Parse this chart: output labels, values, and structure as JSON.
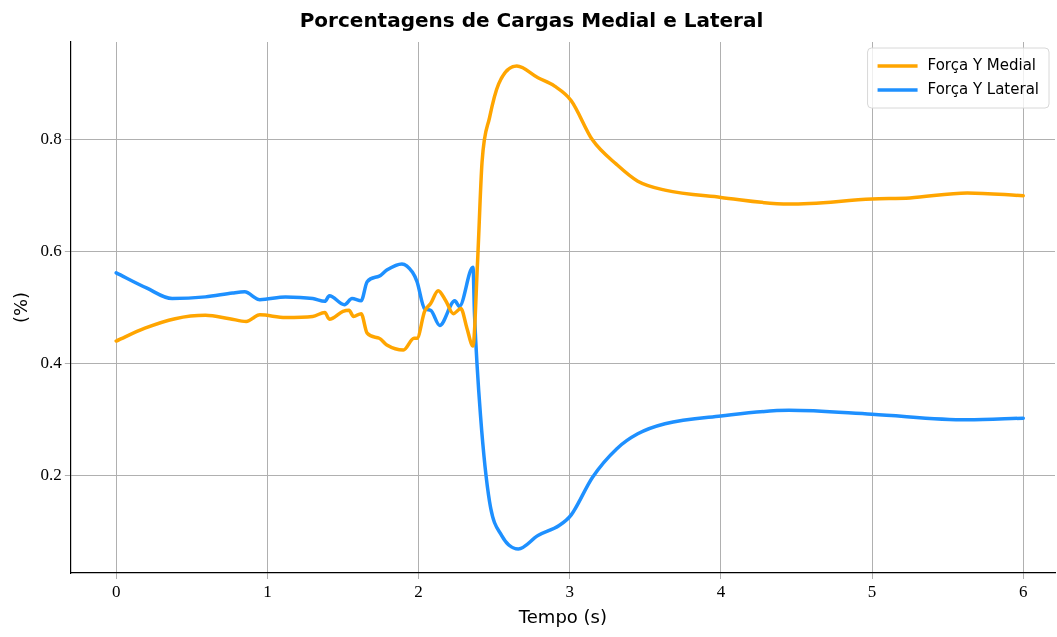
{
  "chart_data": {
    "type": "line",
    "title": "Porcentagens de Cargas Medial e Lateral",
    "xlabel": "Tempo (s)",
    "ylabel": "(%)",
    "xlim": [
      -0.3,
      6.21
    ],
    "ylim": [
      0.025,
      0.975
    ],
    "xticks": [
      0,
      1,
      2,
      3,
      4,
      5,
      6
    ],
    "yticks": [
      0.2,
      0.4,
      0.6,
      0.8
    ],
    "grid": true,
    "legend": "top right",
    "marker": "none",
    "line_style": "solid",
    "series": [
      {
        "name": "Força Y Medial",
        "color": "#ffa500",
        "x": [
          0,
          0.19,
          0.39,
          0.59,
          0.75,
          0.86,
          0.95,
          1.12,
          1.3,
          1.38,
          1.41,
          1.5,
          1.54,
          1.57,
          1.62,
          1.66,
          1.74,
          1.79,
          1.9,
          1.97,
          1.99,
          2.04,
          2.08,
          2.13,
          2.18,
          2.23,
          2.28,
          2.32,
          2.36,
          2.39,
          2.42,
          2.47,
          2.53,
          2.65,
          2.79,
          2.9,
          3.01,
          3.15,
          3.31,
          3.45,
          3.63,
          4.0,
          4.45,
          5.0,
          5.25,
          5.63,
          6.0
        ],
        "values": [
          0.44,
          0.463,
          0.48,
          0.486,
          0.48,
          0.475,
          0.487,
          0.482,
          0.484,
          0.491,
          0.479,
          0.493,
          0.495,
          0.484,
          0.489,
          0.454,
          0.445,
          0.433,
          0.424,
          0.445,
          0.445,
          0.493,
          0.507,
          0.53,
          0.512,
          0.489,
          0.498,
          0.463,
          0.431,
          0.58,
          0.76,
          0.84,
          0.9,
          0.932,
          0.911,
          0.896,
          0.87,
          0.8,
          0.756,
          0.726,
          0.71,
          0.697,
          0.685,
          0.694,
          0.696,
          0.705,
          0.7
        ]
      },
      {
        "name": "Força Y Lateral",
        "color": "#1e90ff",
        "x": [
          0,
          0.2,
          0.37,
          0.59,
          0.77,
          0.85,
          0.95,
          1.12,
          1.3,
          1.38,
          1.41,
          1.51,
          1.56,
          1.62,
          1.66,
          1.74,
          1.79,
          1.89,
          1.96,
          1.99,
          2.04,
          2.08,
          2.14,
          2.24,
          2.27,
          2.36,
          2.37,
          2.41,
          2.47,
          2.55,
          2.66,
          2.79,
          2.93,
          3.01,
          3.15,
          3.31,
          3.45,
          3.63,
          4.0,
          4.45,
          5.0,
          5.63,
          6.0
        ],
        "values": [
          0.562,
          0.535,
          0.516,
          0.519,
          0.526,
          0.528,
          0.514,
          0.519,
          0.516,
          0.511,
          0.521,
          0.505,
          0.516,
          0.512,
          0.546,
          0.556,
          0.567,
          0.578,
          0.563,
          0.546,
          0.498,
          0.495,
          0.468,
          0.512,
          0.502,
          0.572,
          0.488,
          0.306,
          0.152,
          0.092,
          0.068,
          0.092,
          0.11,
          0.129,
          0.196,
          0.247,
          0.274,
          0.292,
          0.306,
          0.316,
          0.309,
          0.299,
          0.302
        ]
      }
    ]
  }
}
